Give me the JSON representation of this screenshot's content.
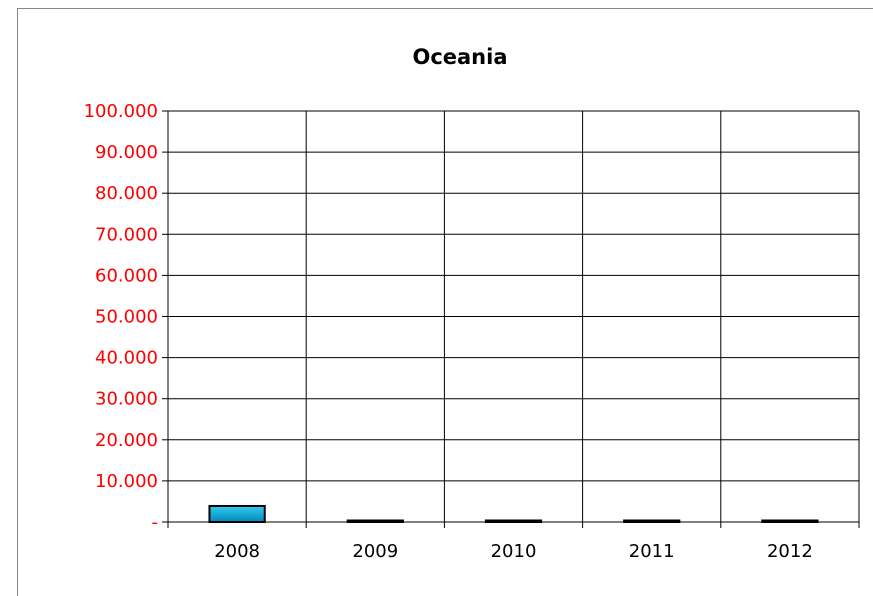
{
  "chart_data": {
    "type": "bar",
    "title": "Oceania",
    "categories": [
      "2008",
      "2009",
      "2010",
      "2011",
      "2012"
    ],
    "values": [
      3900,
      150,
      150,
      150,
      150
    ],
    "ylim": [
      0,
      100000
    ],
    "yticks": [
      {
        "value": 0,
        "label": "-"
      },
      {
        "value": 10000,
        "label": "10.000"
      },
      {
        "value": 20000,
        "label": "20.000"
      },
      {
        "value": 30000,
        "label": "30.000"
      },
      {
        "value": 40000,
        "label": "40.000"
      },
      {
        "value": 50000,
        "label": "50.000"
      },
      {
        "value": 60000,
        "label": "60.000"
      },
      {
        "value": 70000,
        "label": "70.000"
      },
      {
        "value": 80000,
        "label": "80.000"
      },
      {
        "value": 90000,
        "label": "90.000"
      },
      {
        "value": 100000,
        "label": "100.000"
      }
    ],
    "grid": true,
    "legend": "none",
    "colors": {
      "bar_top": "#33ccee",
      "bar_bottom": "#0088bb",
      "tick_labels": "#ff0000"
    }
  }
}
